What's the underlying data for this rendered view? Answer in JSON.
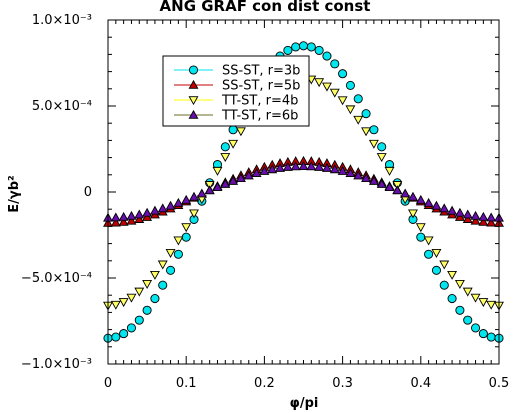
{
  "chart_data": {
    "type": "scatter",
    "title": "ANG GRAF con dist const",
    "xlabel": "φ/pi",
    "ylabel": "E/γb²",
    "xlim": [
      0,
      0.5
    ],
    "ylim": [
      -0.001,
      0.001
    ],
    "x_ticks": [
      0,
      0.1,
      0.2,
      0.3,
      0.4,
      0.5
    ],
    "x_tick_labels": [
      "0",
      "0.1",
      "0.2",
      "0.3",
      "0.4",
      "0.5"
    ],
    "y_ticks": [
      -0.001,
      -0.0005,
      0,
      0.0005,
      0.001
    ],
    "y_tick_labels": [
      "−1.0×10⁻³",
      "−5.0×10⁻⁴",
      "0",
      "5.0×10⁻⁴",
      "1.0×10⁻³"
    ],
    "grid": false,
    "legend_position": "top-left",
    "model": "y = -A * cos(4π·x)",
    "x_step": 0.01,
    "x_range": [
      0,
      0.5
    ],
    "series": [
      {
        "name": "SS-ST, r=3b",
        "amplitude": 0.00085,
        "marker": "circle",
        "fill": "#00e5ee",
        "stroke": "#000000",
        "line": "#00e5ee"
      },
      {
        "name": "SS-ST, r=5b",
        "amplitude": 0.00018,
        "marker": "triangle-up",
        "fill": "#c00000",
        "stroke": "#000000",
        "line": "#c00000"
      },
      {
        "name": "TT-ST, r=4b",
        "amplitude": 0.00066,
        "marker": "triangle-down",
        "fill": "#ffff66",
        "stroke": "#000000",
        "line": "#ffff00"
      },
      {
        "name": "TT-ST, r=6b",
        "amplitude": 0.00015,
        "marker": "triangle-up",
        "fill": "#6a0dad",
        "stroke": "#000000",
        "line": "#6b6b2a"
      }
    ]
  }
}
